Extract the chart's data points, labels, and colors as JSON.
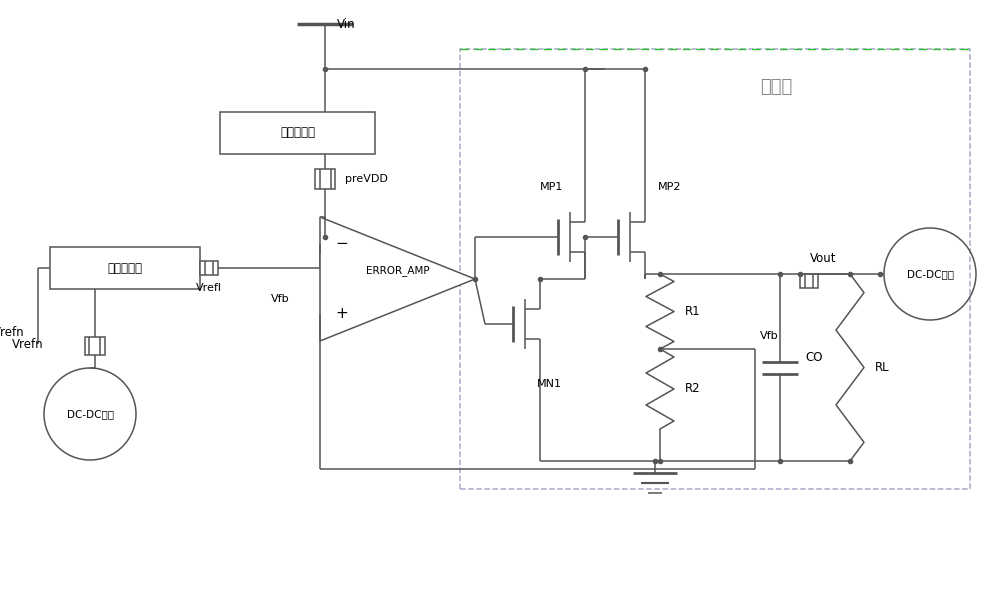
{
  "bg_color": "#ffffff",
  "line_color": "#555555",
  "dash_color": "#aaaacc",
  "green_color": "#33bb33",
  "labels": {
    "Vin": "Vin",
    "preVDD": "preVDD",
    "Vrefl": "Vrefl",
    "Vrefn": "Vrefn",
    "Vfb": "Vfb",
    "Vout": "Vout",
    "MP1": "MP1",
    "MP2": "MP2",
    "MN1": "MN1",
    "R1": "R1",
    "R2": "R2",
    "CO": "CO",
    "RL": "RL",
    "ERROR_AMP": "ERROR_AMP",
    "output_stage": "输出级",
    "prejian": "预降压模块",
    "dianya": "电压基准源",
    "dcdc": "DC-DC电路"
  },
  "xmax": 10.0,
  "ymax": 5.99
}
